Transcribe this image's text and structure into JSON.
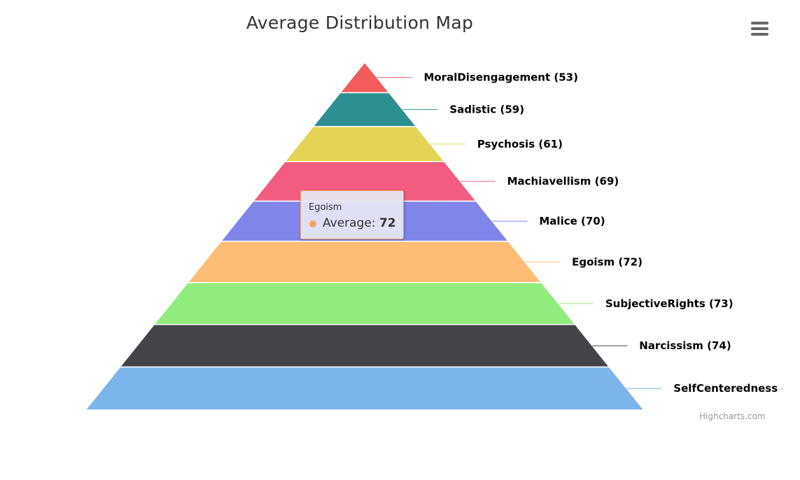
{
  "chart_data": {
    "type": "pyramid",
    "title": "Average Distribution Map",
    "series_name": "Average",
    "points": [
      {
        "name": "MoralDisengagement",
        "value": 53,
        "color": "#f45b5b"
      },
      {
        "name": "Sadistic",
        "value": 59,
        "color": "#2b908f"
      },
      {
        "name": "Psychosis",
        "value": 61,
        "color": "#e4d354"
      },
      {
        "name": "Machiavellism",
        "value": 69,
        "color": "#f15c80"
      },
      {
        "name": "Malice",
        "value": 70,
        "color": "#8085e9"
      },
      {
        "name": "Egoism",
        "value": 72,
        "color": "#ffbc75"
      },
      {
        "name": "SubjectiveRights",
        "value": 73,
        "color": "#90ed7d"
      },
      {
        "name": "Narcissism",
        "value": 74,
        "color": "#434348"
      },
      {
        "name": "SelfCenteredness",
        "value": 75,
        "color": "#7cb5ec"
      }
    ],
    "hovered_point": "Egoism"
  },
  "tooltip": {
    "header": "Egoism",
    "series_label": "Average: ",
    "value": "72",
    "marker_color": "#f7a35c"
  },
  "credits": "Highcharts.com",
  "menu_icon": "hamburger-menu-icon"
}
